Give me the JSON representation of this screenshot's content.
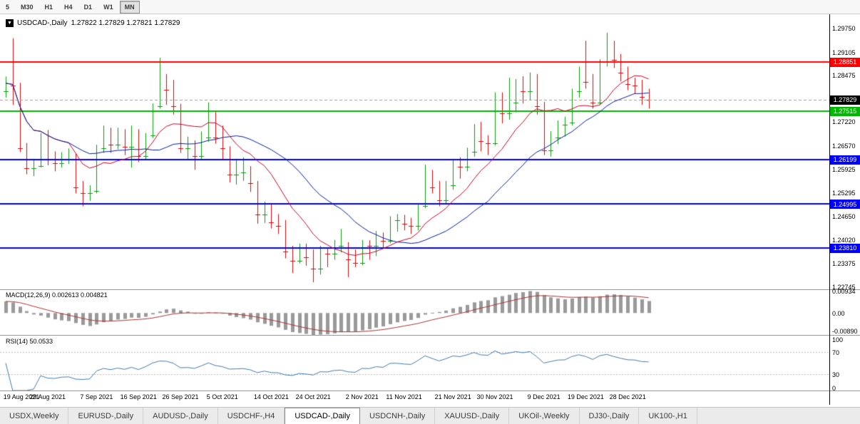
{
  "toolbar": {
    "timeframes": [
      {
        "label": "5",
        "active": false
      },
      {
        "label": "M30",
        "active": false
      },
      {
        "label": "H1",
        "active": false
      },
      {
        "label": "H4",
        "active": false
      },
      {
        "label": "D1",
        "active": false
      },
      {
        "label": "W1",
        "active": false
      },
      {
        "label": "MN",
        "active": true
      }
    ]
  },
  "chart_header": {
    "dropdown_icon": "▼",
    "symbol_period": "USDCAD-,Daily",
    "ohlc": "1.27822 1.27829 1.27821 1.27829"
  },
  "price_axis": {
    "ticks": [
      "1.29750",
      "1.29105",
      "1.28475",
      "1.27220",
      "1.26570",
      "1.25925",
      "1.25295",
      "1.24650",
      "1.24020",
      "1.23375",
      "1.22745"
    ],
    "badges": [
      {
        "value": "1.28851",
        "bg": "#ff0000"
      },
      {
        "value": "1.27829",
        "bg": "#000000"
      },
      {
        "value": "1.27515",
        "bg": "#00b800"
      },
      {
        "value": "1.26199",
        "bg": "#0000ff"
      },
      {
        "value": "1.24995",
        "bg": "#0000ff"
      },
      {
        "value": "1.23810",
        "bg": "#0000ff"
      }
    ]
  },
  "macd": {
    "label": "MACD(12,26,9) 0.002613 0.004821",
    "params": {
      "fast": 12,
      "slow": 26,
      "signal": 9
    },
    "axis_labels": [
      "0.00934",
      "0.00",
      "-0.00890"
    ]
  },
  "rsi": {
    "label": "RSI(14) 50.0533",
    "params": {
      "period": 14
    },
    "levels": [
      70,
      30
    ],
    "axis_labels": [
      "100",
      "70",
      "30",
      "0"
    ]
  },
  "tabs": [
    {
      "label": "USDX,Weekly",
      "active": false
    },
    {
      "label": "EURUSD-,Daily",
      "active": false
    },
    {
      "label": "AUDUSD-,Daily",
      "active": false
    },
    {
      "label": "USDCHF-,H4",
      "active": false
    },
    {
      "label": "USDCAD-,Daily",
      "active": true
    },
    {
      "label": "USDCNH-,Daily",
      "active": false
    },
    {
      "label": "XAUUSD-,Daily",
      "active": false
    },
    {
      "label": "UKOil-,Weekly",
      "active": false
    },
    {
      "label": "DJ30-,Daily",
      "active": false
    },
    {
      "label": "UK100-,H1",
      "active": false
    }
  ],
  "colors": {
    "up": "#009c00",
    "down": "#dc0404",
    "ma_fast": "#c40024",
    "ma_slow": "#001c9c",
    "macd_hist": "#9a9a9a",
    "macd_signal": "#a83232",
    "rsi_line": "#4079ae",
    "rsi_level": "#bcbcbc",
    "bid_line": "#9b9b9b"
  },
  "chart_data": {
    "type": "candlestick",
    "title": "USDCAD-,Daily",
    "ylim": [
      1.2268,
      1.3012
    ],
    "bid": 1.27829,
    "hlines": [
      {
        "price": 1.28851,
        "color": "#ff0000"
      },
      {
        "price": 1.27515,
        "color": "#00b800"
      },
      {
        "price": 1.26199,
        "color": "#0000ff"
      },
      {
        "price": 1.24995,
        "color": "#0000ff"
      },
      {
        "price": 1.2381,
        "color": "#0000ff"
      }
    ],
    "moving_averages": [
      {
        "period": 10,
        "color": "#c40024"
      },
      {
        "period": 21,
        "color": "#001c9c"
      }
    ],
    "date_labels": [
      {
        "label": "19 Aug 2021",
        "i": 0
      },
      {
        "label": "29 Aug 2021",
        "i": 6
      },
      {
        "label": "7 Sep 2021",
        "i": 13
      },
      {
        "label": "16 Sep 2021",
        "i": 19
      },
      {
        "label": "26 Sep 2021",
        "i": 25
      },
      {
        "label": "5 Oct 2021",
        "i": 31
      },
      {
        "label": "14 Oct 2021",
        "i": 38
      },
      {
        "label": "24 Oct 2021",
        "i": 44
      },
      {
        "label": "2 Nov 2021",
        "i": 51
      },
      {
        "label": "11 Nov 2021",
        "i": 57
      },
      {
        "label": "21 Nov 2021",
        "i": 64
      },
      {
        "label": "30 Nov 2021",
        "i": 70
      },
      {
        "label": "9 Dec 2021",
        "i": 77
      },
      {
        "label": "19 Dec 2021",
        "i": 83
      },
      {
        "label": "28 Dec 2021",
        "i": 89
      }
    ],
    "candles": [
      [
        1.2805,
        1.2845,
        1.2788,
        1.2827
      ],
      [
        1.2827,
        1.2949,
        1.2768,
        1.282
      ],
      [
        1.282,
        1.2828,
        1.264,
        1.265
      ],
      [
        1.265,
        1.2665,
        1.258,
        1.2597
      ],
      [
        1.2597,
        1.2622,
        1.2575,
        1.2603
      ],
      [
        1.2603,
        1.2692,
        1.2599,
        1.2682
      ],
      [
        1.2682,
        1.27,
        1.2604,
        1.262
      ],
      [
        1.262,
        1.2642,
        1.2588,
        1.261
      ],
      [
        1.261,
        1.264,
        1.2598,
        1.2622
      ],
      [
        1.2622,
        1.265,
        1.2608,
        1.2625
      ],
      [
        1.2625,
        1.2636,
        1.2528,
        1.2545
      ],
      [
        1.2545,
        1.2562,
        1.2493,
        1.2529
      ],
      [
        1.2529,
        1.255,
        1.2508,
        1.2535
      ],
      [
        1.2535,
        1.266,
        1.2528,
        1.265
      ],
      [
        1.265,
        1.2712,
        1.2638,
        1.2697
      ],
      [
        1.2697,
        1.2706,
        1.2638,
        1.266
      ],
      [
        1.266,
        1.2706,
        1.2648,
        1.269
      ],
      [
        1.269,
        1.2702,
        1.2632,
        1.2655
      ],
      [
        1.2655,
        1.2712,
        1.2598,
        1.2693
      ],
      [
        1.2693,
        1.2702,
        1.2613,
        1.263
      ],
      [
        1.263,
        1.2692,
        1.2618,
        1.2685
      ],
      [
        1.2685,
        1.2772,
        1.2678,
        1.2765
      ],
      [
        1.2765,
        1.2896,
        1.2758,
        1.2815
      ],
      [
        1.2815,
        1.2852,
        1.2768,
        1.281
      ],
      [
        1.281,
        1.2836,
        1.2742,
        1.2765
      ],
      [
        1.2765,
        1.2771,
        1.2638,
        1.265
      ],
      [
        1.265,
        1.2682,
        1.2618,
        1.2655
      ],
      [
        1.2655,
        1.2672,
        1.2592,
        1.263
      ],
      [
        1.263,
        1.2696,
        1.2618,
        1.268
      ],
      [
        1.268,
        1.2775,
        1.2668,
        1.2745
      ],
      [
        1.2745,
        1.2752,
        1.2663,
        1.268
      ],
      [
        1.268,
        1.2712,
        1.2618,
        1.265
      ],
      [
        1.265,
        1.2656,
        1.2558,
        1.258
      ],
      [
        1.258,
        1.2622,
        1.2552,
        1.2585
      ],
      [
        1.2585,
        1.2626,
        1.2562,
        1.259
      ],
      [
        1.259,
        1.2602,
        1.2532,
        1.2555
      ],
      [
        1.2555,
        1.2562,
        1.2446,
        1.247
      ],
      [
        1.247,
        1.2506,
        1.2448,
        1.2495
      ],
      [
        1.2495,
        1.2502,
        1.2433,
        1.245
      ],
      [
        1.245,
        1.2472,
        1.2418,
        1.244
      ],
      [
        1.244,
        1.2456,
        1.2352,
        1.237
      ],
      [
        1.237,
        1.2386,
        1.2312,
        1.2345
      ],
      [
        1.2345,
        1.2392,
        1.2338,
        1.2375
      ],
      [
        1.2375,
        1.2392,
        1.2332,
        1.2355
      ],
      [
        1.2355,
        1.2376,
        1.2287,
        1.2325
      ],
      [
        1.2325,
        1.2386,
        1.2308,
        1.237
      ],
      [
        1.237,
        1.2382,
        1.2328,
        1.2365
      ],
      [
        1.2365,
        1.2402,
        1.2348,
        1.2385
      ],
      [
        1.2385,
        1.2432,
        1.2368,
        1.239
      ],
      [
        1.239,
        1.2396,
        1.2301,
        1.235
      ],
      [
        1.235,
        1.2376,
        1.2328,
        1.234
      ],
      [
        1.234,
        1.2402,
        1.2333,
        1.239
      ],
      [
        1.239,
        1.2401,
        1.2348,
        1.2385
      ],
      [
        1.2385,
        1.2426,
        1.2358,
        1.241
      ],
      [
        1.241,
        1.2422,
        1.2378,
        1.24
      ],
      [
        1.24,
        1.2466,
        1.2393,
        1.2455
      ],
      [
        1.2455,
        1.2472,
        1.2424,
        1.2456
      ],
      [
        1.2456,
        1.247,
        1.2428,
        1.2445
      ],
      [
        1.2445,
        1.2462,
        1.2418,
        1.244
      ],
      [
        1.244,
        1.2502,
        1.2428,
        1.2495
      ],
      [
        1.2495,
        1.2606,
        1.2488,
        1.258
      ],
      [
        1.258,
        1.2592,
        1.2528,
        1.2545
      ],
      [
        1.2545,
        1.2562,
        1.2493,
        1.251
      ],
      [
        1.251,
        1.2562,
        1.2498,
        1.255
      ],
      [
        1.255,
        1.2622,
        1.2538,
        1.261
      ],
      [
        1.261,
        1.2626,
        1.2568,
        1.26
      ],
      [
        1.26,
        1.2652,
        1.2588,
        1.264
      ],
      [
        1.264,
        1.2716,
        1.2628,
        1.27
      ],
      [
        1.27,
        1.2722,
        1.2642,
        1.267
      ],
      [
        1.267,
        1.2686,
        1.2632,
        1.2665
      ],
      [
        1.2665,
        1.2802,
        1.2658,
        1.279
      ],
      [
        1.279,
        1.2802,
        1.2718,
        1.2745
      ],
      [
        1.2745,
        1.2842,
        1.2728,
        1.2775
      ],
      [
        1.2775,
        1.2838,
        1.2748,
        1.282
      ],
      [
        1.282,
        1.2846,
        1.2772,
        1.2805
      ],
      [
        1.2805,
        1.2856,
        1.2782,
        1.284
      ],
      [
        1.284,
        1.2852,
        1.2742,
        1.2765
      ],
      [
        1.2765,
        1.2776,
        1.2632,
        1.2645
      ],
      [
        1.2645,
        1.2697,
        1.2628,
        1.268
      ],
      [
        1.268,
        1.2726,
        1.2662,
        1.2715
      ],
      [
        1.2715,
        1.2736,
        1.2682,
        1.272
      ],
      [
        1.272,
        1.2812,
        1.2712,
        1.2805
      ],
      [
        1.2805,
        1.2872,
        1.2788,
        1.286
      ],
      [
        1.286,
        1.2942,
        1.2812,
        1.283
      ],
      [
        1.283,
        1.2852,
        1.2758,
        1.2775
      ],
      [
        1.2775,
        1.2892,
        1.2768,
        1.2885
      ],
      [
        1.2885,
        1.2964,
        1.2872,
        1.293
      ],
      [
        1.293,
        1.2942,
        1.2868,
        1.289
      ],
      [
        1.289,
        1.2906,
        1.2832,
        1.2855
      ],
      [
        1.2855,
        1.2872,
        1.2808,
        1.2825
      ],
      [
        1.2825,
        1.2842,
        1.2798,
        1.282
      ],
      [
        1.282,
        1.2836,
        1.2768,
        1.279
      ],
      [
        1.279,
        1.2812,
        1.2758,
        1.2783
      ]
    ]
  }
}
